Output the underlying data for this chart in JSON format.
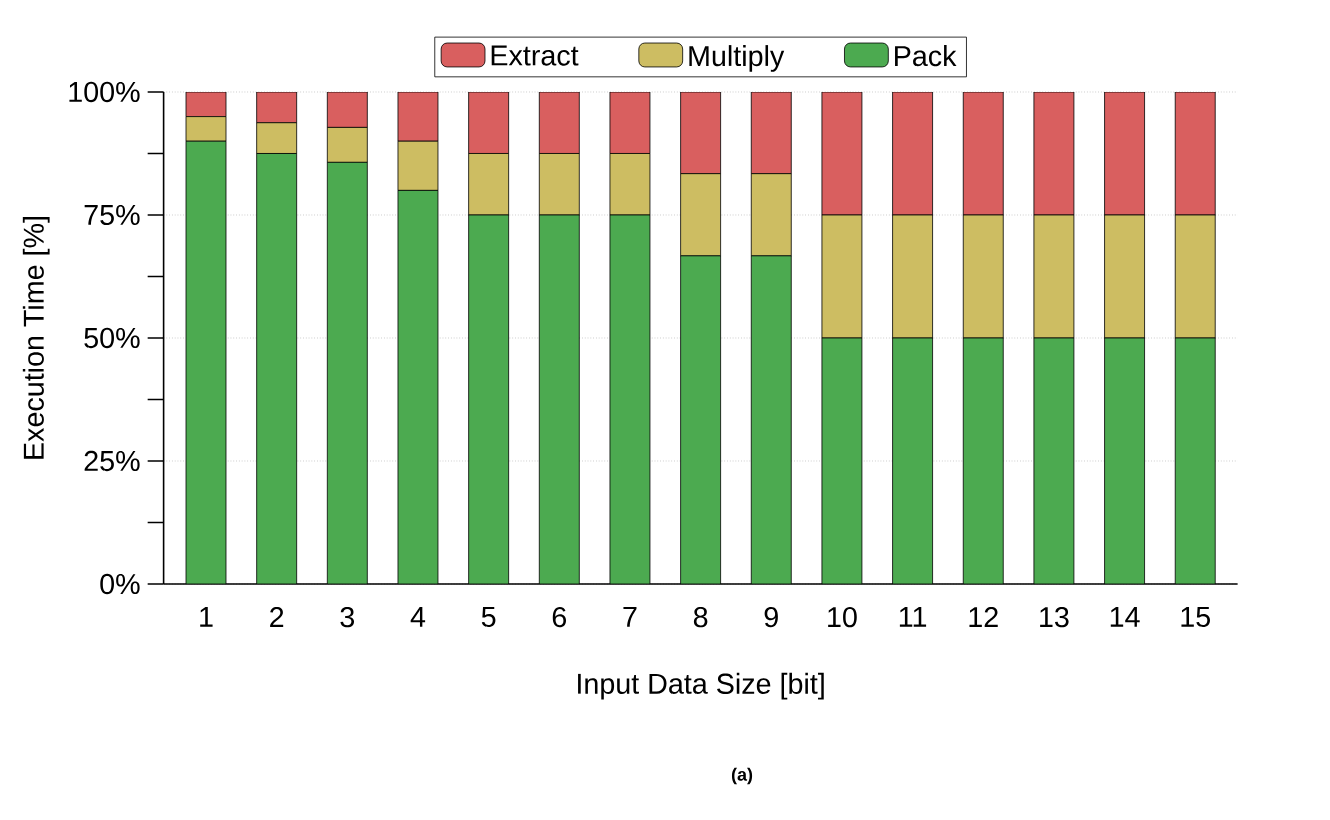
{
  "chart_data": {
    "type": "bar",
    "stacked": true,
    "xlabel": "Input Data Size [bit]",
    "ylabel": "Execution Time [%]",
    "categories": [
      "1",
      "2",
      "3",
      "4",
      "5",
      "6",
      "7",
      "8",
      "9",
      "10",
      "11",
      "12",
      "13",
      "14",
      "15"
    ],
    "series": [
      {
        "name": "Pack",
        "color": "#4caa50",
        "values": [
          90,
          87.5,
          85.7,
          80,
          75,
          75,
          75,
          66.7,
          66.7,
          50,
          50,
          50,
          50,
          50,
          50
        ]
      },
      {
        "name": "Multiply",
        "color": "#cdbd62",
        "values": [
          5,
          6.25,
          7.1,
          10,
          12.5,
          12.5,
          12.5,
          16.7,
          16.7,
          25,
          25,
          25,
          25,
          25,
          25
        ]
      },
      {
        "name": "Extract",
        "color": "#d95f5f",
        "values": [
          5,
          6.25,
          7.2,
          10,
          12.5,
          12.5,
          12.5,
          16.6,
          16.6,
          25,
          25,
          25,
          25,
          25,
          25
        ]
      }
    ],
    "ylim": [
      0,
      100
    ],
    "yticks": [
      {
        "value": 0,
        "label": "0%"
      },
      {
        "value": 25,
        "label": "25%"
      },
      {
        "value": 50,
        "label": "50%"
      },
      {
        "value": 75,
        "label": "75%"
      },
      {
        "value": 100,
        "label": "100%"
      }
    ],
    "grid": "y",
    "legend": "top",
    "annotations": [
      "(a)"
    ]
  }
}
